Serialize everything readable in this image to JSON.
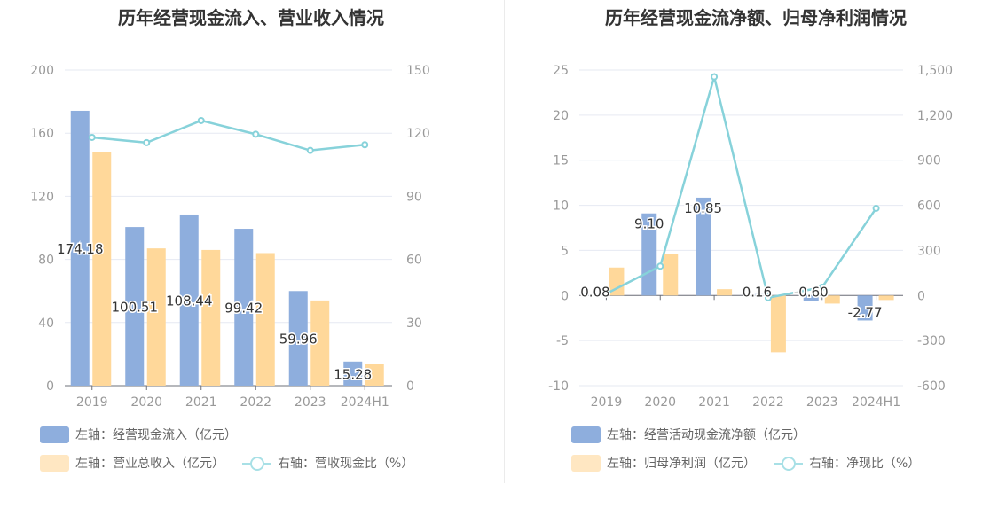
{
  "colors": {
    "blue": "#8eaedd",
    "orange": "#ffd89a",
    "line": "#87d2da",
    "grid": "#e6e9f2",
    "axis_text": "#999999",
    "label_text": "#333333"
  },
  "chart_data": [
    {
      "type": "bar",
      "title": "历年经营现金流入、营业收入情况",
      "categories": [
        "2019",
        "2020",
        "2021",
        "2022",
        "2023",
        "2024H1"
      ],
      "left_axis": {
        "ylim": [
          0,
          200
        ],
        "ticks": [
          "0",
          "40",
          "80",
          "120",
          "160",
          "200"
        ]
      },
      "right_axis": {
        "ylim": [
          0,
          150
        ],
        "ticks": [
          "0",
          "30",
          "60",
          "90",
          "120",
          "150"
        ]
      },
      "grid": true,
      "legend_position": "bottom-left",
      "series": [
        {
          "name": "左轴：经营现金流入（亿元）",
          "type": "bar",
          "axis": "left",
          "color": "#8eaedd",
          "values": [
            174.18,
            100.51,
            108.44,
            99.42,
            59.96,
            15.28
          ],
          "labels": [
            "174.18",
            "100.51",
            "108.44",
            "99.42",
            "59.96",
            "15.28"
          ]
        },
        {
          "name": "左轴：营业总收入（亿元）",
          "type": "bar",
          "axis": "left",
          "color": "#ffd89a",
          "values": [
            148,
            87,
            86,
            84,
            54,
            14
          ]
        },
        {
          "name": "右轴：营收现金比（%）",
          "type": "line",
          "axis": "right",
          "color": "#87d2da",
          "values": [
            118,
            115.5,
            126,
            119.5,
            111.8,
            114.5
          ]
        }
      ]
    },
    {
      "type": "bar",
      "title": "历年经营现金流净额、归母净利润情况",
      "categories": [
        "2019",
        "2020",
        "2021",
        "2022",
        "2023",
        "2024H1"
      ],
      "left_axis": {
        "ylim": [
          -10,
          25
        ],
        "ticks": [
          "-10",
          "-5",
          "0",
          "5",
          "10",
          "15",
          "20",
          "25"
        ]
      },
      "right_axis": {
        "ylim": [
          -600,
          1500
        ],
        "ticks": [
          "-600",
          "-300",
          "0",
          "300",
          "600",
          "900",
          "1,200",
          "1,500"
        ]
      },
      "grid": true,
      "legend_position": "bottom-left",
      "series": [
        {
          "name": "左轴：经营活动现金流净额（亿元）",
          "type": "bar",
          "axis": "left",
          "color": "#8eaedd",
          "values": [
            0.08,
            9.1,
            10.85,
            0.16,
            -0.6,
            -2.77
          ],
          "labels": [
            "0.08",
            "9.10",
            "10.85",
            "0.16",
            "-0.60",
            "-2.77"
          ]
        },
        {
          "name": "左轴：归母净利润（亿元）",
          "type": "bar",
          "axis": "left",
          "color": "#ffd89a",
          "values": [
            3.1,
            4.6,
            0.7,
            -6.3,
            -0.9,
            -0.5
          ]
        },
        {
          "name": "右轴：净现比（%）",
          "type": "line",
          "axis": "right",
          "color": "#87d2da",
          "values": [
            12,
            195,
            1455,
            -15,
            55,
            580
          ]
        }
      ]
    }
  ]
}
